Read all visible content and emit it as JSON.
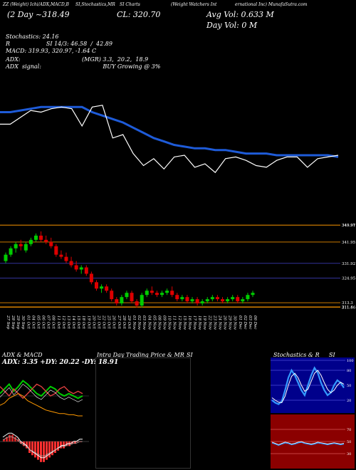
{
  "header": {
    "title_row": [
      "ZZ (Weight) Ichi/ADX,MACD,B",
      "SI,Stochastics,MR",
      "SI Charts",
      "(Weight Watchers Int",
      "ernational Inc) MunafaSutra.com"
    ],
    "day_text": "(2 Day ~318.49",
    "close_text": "CL: 320.70",
    "avg_vol": "Avg Vol: 0.633 M",
    "day_vol": "Day Vol: 0   M"
  },
  "indicators": {
    "stochastics": "Stochastics: 24.16",
    "r_line": "R                    SI 14/3: 46.58  /  42.89",
    "macd": "MACD: 319.93,  320.97,  -1.64  C",
    "adx": "ADX:                                  (MGR) 3.3,  20.2,  18.9",
    "adx_signal": "ADX  signal:                                  BUY Growing @ 3%"
  },
  "colors": {
    "background": "#000000",
    "up_candle": "#00cc00",
    "down_candle": "#dd0000",
    "ma_line": "#1e5bd8",
    "price_line": "#ffffff",
    "level_line": "#c87800",
    "stoch_panel": "#00008b",
    "rsi_panel": "#8b0000"
  },
  "chart_data": [
    {
      "type": "line",
      "title": "",
      "series": [
        {
          "values": [
            331,
            331,
            335,
            339,
            338,
            340,
            341,
            340,
            330,
            341,
            342,
            323,
            325,
            314,
            307,
            311,
            305,
            312,
            313,
            306,
            308,
            303,
            311,
            312,
            310,
            307,
            306,
            310,
            312,
            312,
            306,
            311,
            312,
            313
          ]
        },
        {
          "values": [
            338,
            338,
            339,
            340,
            341,
            341,
            341,
            341,
            341,
            338,
            336,
            334,
            332,
            329,
            326,
            323,
            321,
            319,
            318,
            317,
            317,
            316,
            316,
            315,
            314,
            314,
            314,
            313,
            313,
            313,
            313,
            313,
            313,
            312
          ]
        }
      ]
    },
    {
      "type": "bar",
      "title": "",
      "y_ticks": [
        "349.97",
        "349.91",
        "341.95",
        "331.92",
        "324.95",
        "313.3",
        "311.4",
        "311.16"
      ],
      "categories": [
        "27 Sep",
        "28 Sep",
        "29 Sep",
        "30 Sep",
        "01 Oct",
        "04 Oct",
        "05 Oct",
        "06 Oct",
        "07 Oct",
        "08 Oct",
        "11 Oct",
        "12 Oct",
        "13 Oct",
        "14 Oct",
        "15 Oct",
        "18 Oct",
        "19 Oct",
        "20 Oct",
        "21 Oct",
        "22 Oct",
        "25 Oct",
        "26 Oct",
        "27 Oct",
        "28 Oct",
        "29 Oct",
        "01 Nov",
        "02 Nov",
        "03 Nov",
        "04 Nov",
        "05 Nov",
        "08 Nov",
        "09 Nov",
        "10 Nov",
        "11 Nov",
        "12 Nov",
        "15 Nov",
        "16 Nov",
        "17 Nov",
        "18 Nov",
        "19 Nov",
        "22 Nov",
        "23 Nov",
        "24 Nov",
        "26 Nov",
        "29 Nov",
        "30 Nov",
        "01 Dec",
        "02 Dec",
        "03 Dec",
        "06 Dec"
      ],
      "candles": [
        [
          333,
          337,
          332,
          336
        ],
        [
          336,
          340,
          335,
          339
        ],
        [
          339,
          342,
          337,
          341
        ],
        [
          341,
          343,
          338,
          340
        ],
        [
          338,
          342,
          337,
          341
        ],
        [
          341,
          344,
          340,
          343
        ],
        [
          343,
          346,
          342,
          345
        ],
        [
          345,
          347,
          342,
          343
        ],
        [
          343,
          345,
          341,
          342
        ],
        [
          342,
          344,
          339,
          340
        ],
        [
          340,
          341,
          335,
          336
        ],
        [
          336,
          338,
          334,
          335
        ],
        [
          335,
          337,
          332,
          333
        ],
        [
          333,
          335,
          330,
          331
        ],
        [
          331,
          333,
          328,
          329
        ],
        [
          329,
          331,
          327,
          330
        ],
        [
          330,
          331,
          326,
          327
        ],
        [
          327,
          328,
          322,
          323
        ],
        [
          323,
          324,
          319,
          320
        ],
        [
          320,
          322,
          318,
          321
        ],
        [
          321,
          322,
          318,
          319
        ],
        [
          319,
          320,
          314,
          315
        ],
        [
          315,
          316,
          312,
          313
        ],
        [
          313,
          317,
          312,
          316
        ],
        [
          316,
          319,
          315,
          318
        ],
        [
          318,
          319,
          313,
          314
        ],
        [
          314,
          315,
          311,
          312
        ],
        [
          312,
          318,
          311,
          317
        ],
        [
          317,
          320,
          316,
          319
        ],
        [
          319,
          321,
          317,
          318
        ],
        [
          318,
          319,
          316,
          317
        ],
        [
          317,
          319,
          316,
          318
        ],
        [
          318,
          320,
          317,
          319
        ],
        [
          319,
          321,
          316,
          317
        ],
        [
          317,
          318,
          314,
          315
        ],
        [
          315,
          317,
          314,
          316
        ],
        [
          316,
          317,
          313,
          314
        ],
        [
          314,
          316,
          313,
          315
        ],
        [
          315,
          316,
          312,
          313
        ],
        [
          313,
          315,
          312,
          314
        ],
        [
          314,
          316,
          313,
          315
        ],
        [
          315,
          317,
          314,
          316
        ],
        [
          316,
          317,
          314,
          315
        ],
        [
          315,
          316,
          313,
          314
        ],
        [
          314,
          316,
          313,
          315
        ],
        [
          315,
          317,
          314,
          316
        ],
        [
          316,
          317,
          313,
          314
        ],
        [
          314,
          316,
          313,
          315
        ],
        [
          315,
          318,
          314,
          317
        ],
        [
          317,
          319,
          316,
          318
        ]
      ]
    },
    {
      "type": "line",
      "title": "ADX  & MACD",
      "label": "ADX: 3.35  +DY: 20.22  -DY: 18.91",
      "series": [
        {
          "values": [
            22,
            26,
            30,
            24,
            28,
            33,
            30,
            26,
            22,
            20,
            24,
            28,
            26,
            22,
            20,
            22,
            20,
            18,
            20
          ]
        },
        {
          "values": [
            28,
            24,
            20,
            26,
            22,
            18,
            22,
            26,
            30,
            28,
            24,
            20,
            22,
            26,
            28,
            24,
            22,
            24,
            22
          ]
        },
        {
          "values": [
            12,
            14,
            18,
            20,
            22,
            20,
            16,
            14,
            12,
            10,
            8,
            7,
            6,
            5,
            5,
            4,
            4,
            3,
            3
          ]
        }
      ]
    },
    {
      "type": "bar",
      "title": "",
      "values": [
        1,
        2,
        3,
        3,
        2,
        1,
        -1,
        -2,
        -3,
        -5,
        -6,
        -7,
        -8,
        -9,
        -9,
        -8,
        -7,
        -6,
        -5,
        -4,
        -3,
        -3,
        -2,
        -2,
        -1,
        -1,
        0,
        0
      ]
    },
    {
      "type": "line",
      "title": "Intra  Day Trading Price  & MR",
      "title_suffix": "SI",
      "series": []
    },
    {
      "type": "line",
      "title": "Stochastics & R",
      "title_suffix": "SI",
      "y_ticks": [
        "100",
        "80",
        "50",
        "20"
      ],
      "series": [
        {
          "values": [
            20,
            15,
            12,
            18,
            40,
            65,
            80,
            70,
            55,
            40,
            30,
            50,
            70,
            85,
            75,
            55,
            40,
            30,
            35,
            50,
            60,
            55,
            45
          ]
        },
        {
          "values": [
            25,
            20,
            16,
            15,
            28,
            50,
            68,
            74,
            65,
            50,
            38,
            42,
            58,
            74,
            80,
            70,
            55,
            42,
            35,
            40,
            50,
            56,
            52
          ]
        }
      ]
    },
    {
      "type": "line",
      "title": "",
      "y_ticks": [
        "70",
        "50",
        "30"
      ],
      "series": [
        {
          "values": [
            48,
            46,
            44,
            46,
            48,
            47,
            45,
            46,
            48,
            49,
            47,
            46,
            45,
            46,
            48,
            47,
            46,
            45,
            46,
            47,
            46,
            45,
            46
          ]
        }
      ]
    }
  ]
}
